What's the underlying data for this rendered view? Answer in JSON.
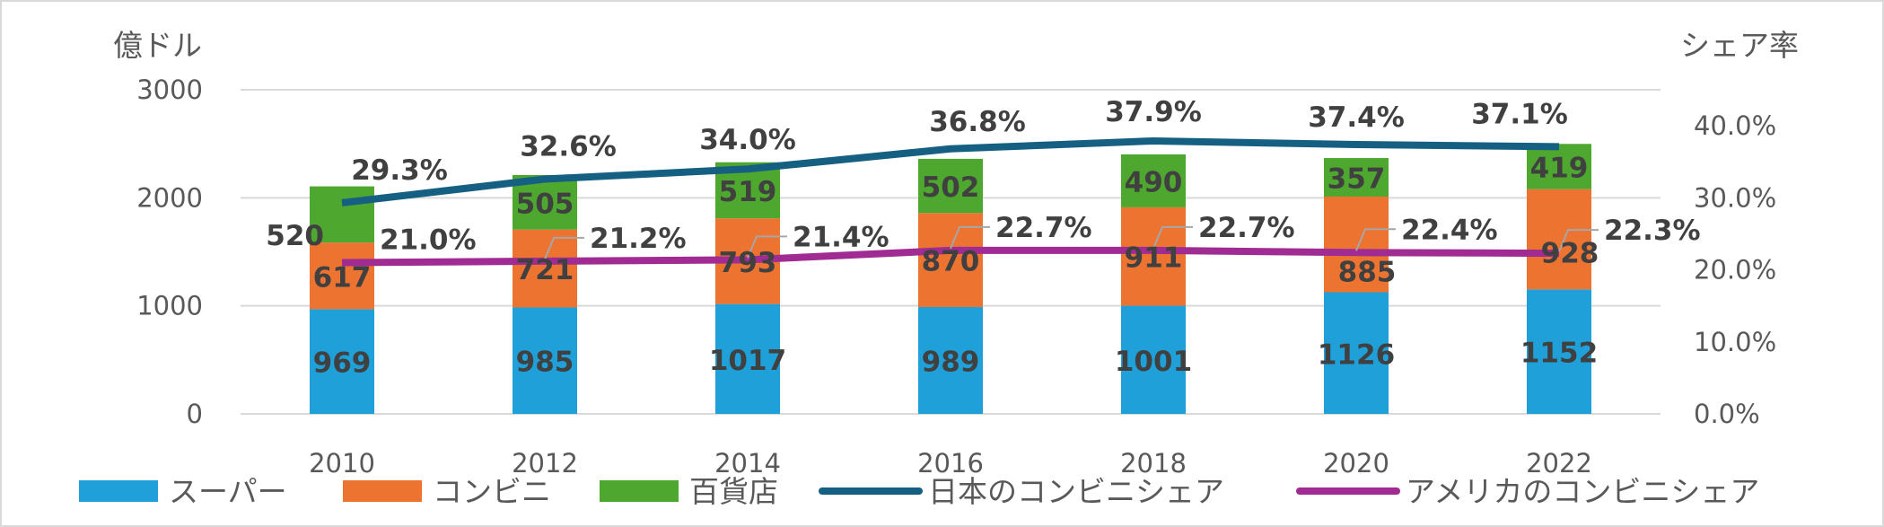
{
  "chart_data": {
    "type": "bar",
    "stacked": true,
    "categories": [
      "2010",
      "2012",
      "2014",
      "2016",
      "2018",
      "2020",
      "2022"
    ],
    "left_axis": {
      "unit_label": "億ドル",
      "ylim": [
        0,
        3000
      ],
      "ticks": [
        "0",
        "1000",
        "2000",
        "3000"
      ]
    },
    "right_axis": {
      "unit_label": "シェア率",
      "ylim": [
        0,
        45
      ],
      "ticks": [
        "0.0%",
        "10.0%",
        "20.0%",
        "30.0%",
        "40.0%"
      ]
    },
    "grid": "horizontal",
    "legend_position": "bottom",
    "bar_series": [
      {
        "name": "スーパー",
        "color": "#1fa0d9",
        "values": [
          969,
          985,
          1017,
          989,
          1001,
          1126,
          1152
        ],
        "labels": [
          "969",
          "985",
          "1017",
          "989",
          "1001",
          "1126",
          "1152"
        ]
      },
      {
        "name": "コンビニ",
        "color": "#ed7331",
        "values": [
          617,
          721,
          793,
          870,
          911,
          885,
          928
        ],
        "labels": [
          "617",
          "721",
          "793",
          "870",
          "911",
          "885",
          "928"
        ]
      },
      {
        "name": "百貨店",
        "color": "#4ea72e",
        "values": [
          520,
          505,
          519,
          502,
          490,
          357,
          419
        ],
        "labels": [
          "520",
          "505",
          "519",
          "502",
          "490",
          "357",
          "419"
        ]
      }
    ],
    "line_series": [
      {
        "name": "日本のコンビニシェア",
        "color": "#156082",
        "axis": "right",
        "values": [
          29.3,
          32.6,
          34.0,
          36.8,
          37.9,
          37.4,
          37.1
        ],
        "labels": [
          "29.3%",
          "32.6%",
          "34.0%",
          "36.8%",
          "37.9%",
          "37.4%",
          "37.1%"
        ]
      },
      {
        "name": "アメリカのコンビニシェア",
        "color": "#a02b93",
        "axis": "right",
        "values": [
          21.0,
          21.2,
          21.4,
          22.7,
          22.7,
          22.4,
          22.3
        ],
        "labels": [
          "21.0%",
          "21.2%",
          "21.4%",
          "22.7%",
          "22.7%",
          "22.4%",
          "22.3%"
        ]
      }
    ]
  }
}
